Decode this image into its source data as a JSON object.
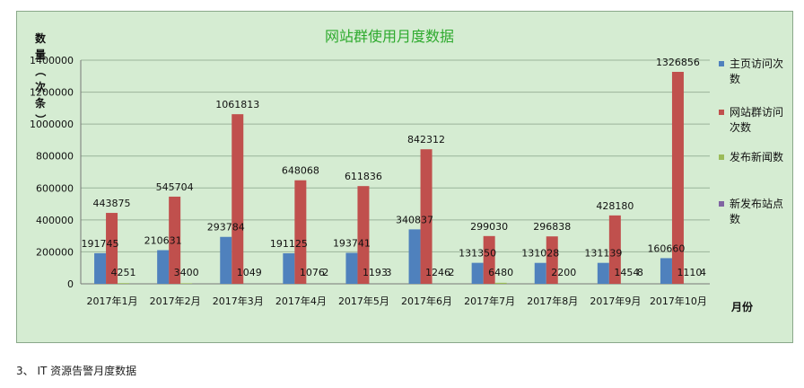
{
  "chart_data": {
    "type": "bar",
    "title": "网站群使用月度数据",
    "ylabel": "数量（次条）",
    "xlabel": "月份",
    "ylim": [
      0,
      1400000
    ],
    "yticks": [
      0,
      200000,
      400000,
      600000,
      800000,
      1000000,
      1200000,
      1400000
    ],
    "grid": true,
    "legend_position": "right",
    "categories": [
      "2017年1月",
      "2017年2月",
      "2017年3月",
      "2017年4月",
      "2017年5月",
      "2017年6月",
      "2017年7月",
      "2017年8月",
      "2017年9月",
      "2017年10月"
    ],
    "series": [
      {
        "name": "主页访问次数",
        "color": "#4f81bd",
        "values": [
          191745,
          210631,
          293784,
          191125,
          193741,
          340837,
          131350,
          131028,
          131139,
          160660
        ]
      },
      {
        "name": "网站群访问次数",
        "color": "#c0504d",
        "values": [
          443875,
          545704,
          1061813,
          648068,
          611836,
          842312,
          299030,
          296838,
          428180,
          1326856
        ]
      },
      {
        "name": "发布新闻数",
        "color": "#9bbb59",
        "values": [
          4251,
          3400,
          1049,
          1076,
          1193,
          1246,
          6480,
          2200,
          1454,
          1110
        ]
      },
      {
        "name": "新发布站点数",
        "color": "#8064a2",
        "values": [
          0,
          0,
          0,
          2,
          3,
          2,
          0,
          0,
          8,
          4
        ]
      }
    ]
  },
  "caption": "3、 IT 资源告警月度数据"
}
